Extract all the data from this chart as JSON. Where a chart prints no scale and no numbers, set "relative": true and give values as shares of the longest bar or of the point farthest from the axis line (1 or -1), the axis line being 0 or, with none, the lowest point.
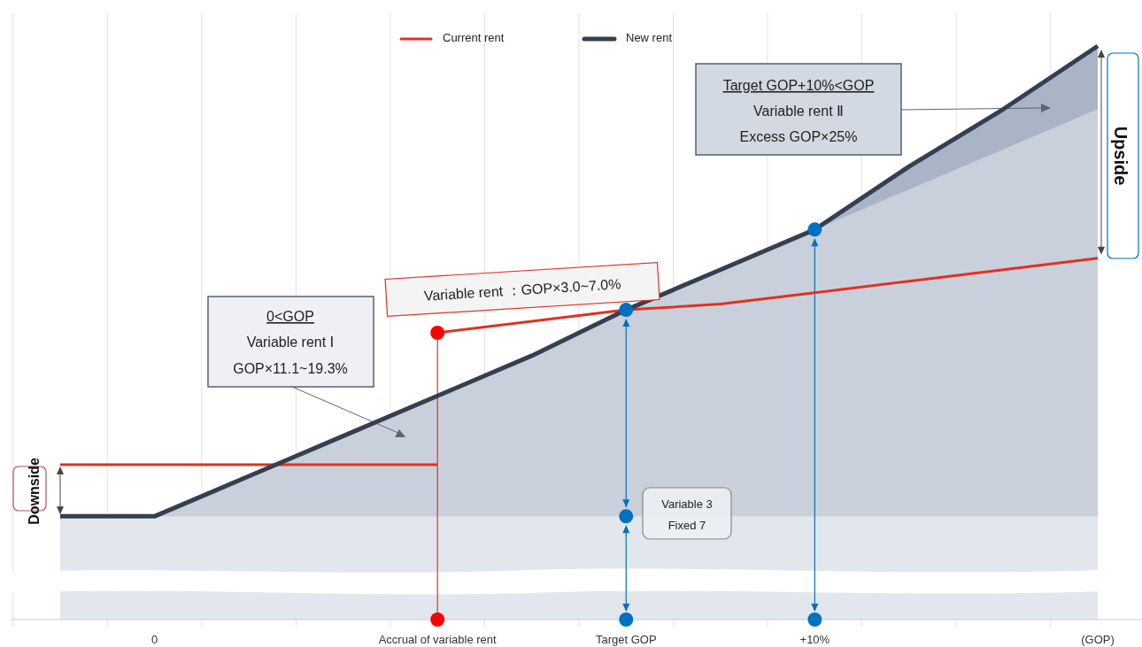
{
  "chart_data": {
    "type": "line",
    "relative": true,
    "grid": "x",
    "legend": "top",
    "tick_labels": "x",
    "categories": [
      null,
      "0",
      null,
      null,
      "Accrual of variable rent",
      null,
      "Target GOP",
      null,
      "+10%",
      null,
      null,
      "(GOP)"
    ],
    "series": [
      {
        "type": "area",
        "color": "#a9b4c7",
        "values": [
          null,
          null,
          null,
          null,
          null,
          null,
          null,
          null,
          0.68,
          0.79,
          0.89,
          1
        ]
      },
      {
        "type": "area",
        "color": "#c9d0dc",
        "values": [
          0.18,
          0.18,
          0.25,
          0.32,
          0.39,
          0.46,
          0.54,
          0.61,
          0.68,
          0.75,
          0.82,
          0.89
        ]
      },
      {
        "name": "Current rent",
        "color": "#e03222",
        "values": [
          0.27,
          0.27,
          0.27,
          0.27,
          0.27,
          null,
          null,
          null,
          null,
          null,
          null,
          null
        ]
      },
      {
        "color": "#e03222",
        "values": [
          null,
          null,
          null,
          null,
          0.5,
          0.52,
          0.54,
          0.55,
          0.57,
          0.59,
          0.61,
          0.63
        ]
      },
      {
        "name": "New rent",
        "color": "#353f50",
        "values": [
          0.18,
          0.18,
          0.25,
          0.32,
          0.39,
          0.46,
          0.54,
          0.61,
          0.68,
          0.79,
          0.89,
          1
        ]
      },
      {
        "type": "scatter",
        "color": "#ff0000",
        "x": [
          "Accrual of variable rent",
          "Accrual of variable rent"
        ],
        "values": [
          0,
          0.5
        ]
      },
      {
        "type": "scatter",
        "color": "#0070c0",
        "x": [
          "Target GOP",
          "Target GOP",
          "Target GOP",
          "+10%",
          "+10%"
        ],
        "values": [
          0,
          0.18,
          0.54,
          0,
          0.68
        ]
      }
    ],
    "bands": [
      {
        "axis": "y",
        "from": 0,
        "to": 0.18,
        "color": "#e2e7ee"
      }
    ],
    "annotations": [
      "0<GOP",
      "Variable rent Ⅰ",
      "GOP×11.1~19.3%",
      "Variable rent ：GOP×3.0~7.0%",
      "Target GOP+10%<GOP",
      "Variable rent Ⅱ",
      "Excess GOP×25%",
      "Variable 3",
      "Fixed 7",
      "Upside",
      "Downside"
    ]
  }
}
